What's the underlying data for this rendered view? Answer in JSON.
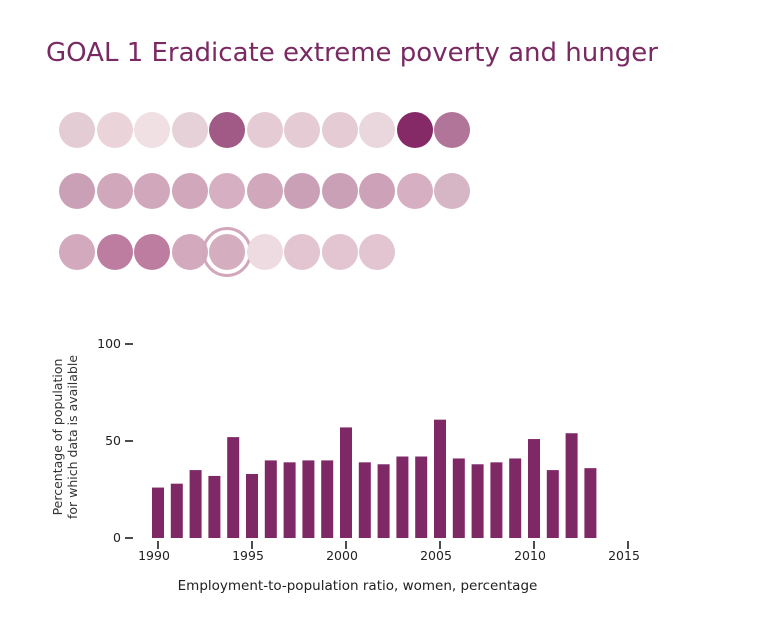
{
  "title": "GOAL 1 Eradicate extreme poverty and hunger",
  "colors": {
    "title": "#7a2a62",
    "bar": "#7e2865",
    "axis": "#111111",
    "ring": "#d2a6bb"
  },
  "indicator_dots": {
    "rows": [
      [
        "#e4ccd5",
        "#ead4da",
        "#f0dfe3",
        "#e6d1d8",
        "#a15a85",
        "#e4cbd4",
        "#e4cbd4",
        "#e4cbd4",
        "#ead7dd",
        "#862a67",
        "#b2759a"
      ],
      [
        "#caa0b6",
        "#d0a7bb",
        "#d0a7bb",
        "#d0a7bb",
        "#d6b0c2",
        "#d0a7bb",
        "#caa0b6",
        "#caa0b6",
        "#cda2b8",
        "#d6b0c2",
        "#d6b5c5"
      ],
      [
        "#d2a9bd",
        "#bd7da0",
        "#bd7da0",
        "#d2a9bd",
        "#d4aebf",
        "#eedbe1",
        "#e2c5d0",
        "#e2c5d0",
        "#e2c5d0"
      ]
    ],
    "selected": {
      "row": 2,
      "col": 4
    }
  },
  "chart_data": {
    "type": "bar",
    "x": [
      1990,
      1991,
      1992,
      1993,
      1994,
      1995,
      1996,
      1997,
      1998,
      1999,
      2000,
      2001,
      2002,
      2003,
      2004,
      2005,
      2006,
      2007,
      2008,
      2009,
      2010,
      2011,
      2012,
      2013
    ],
    "values": [
      26,
      28,
      35,
      32,
      52,
      33,
      40,
      39,
      40,
      40,
      57,
      39,
      38,
      42,
      42,
      61,
      41,
      38,
      39,
      41,
      51,
      35,
      54,
      36
    ],
    "xlim": [
      1990,
      2015
    ],
    "xticks": [
      1990,
      1995,
      2000,
      2005,
      2010,
      2015
    ],
    "ylim": [
      0,
      100
    ],
    "yticks": [
      0,
      50,
      100
    ],
    "ylabel_lines": [
      "Percentage of population",
      "for which data is available"
    ],
    "xlabel": "Employment-to-population ratio, women, percentage"
  }
}
